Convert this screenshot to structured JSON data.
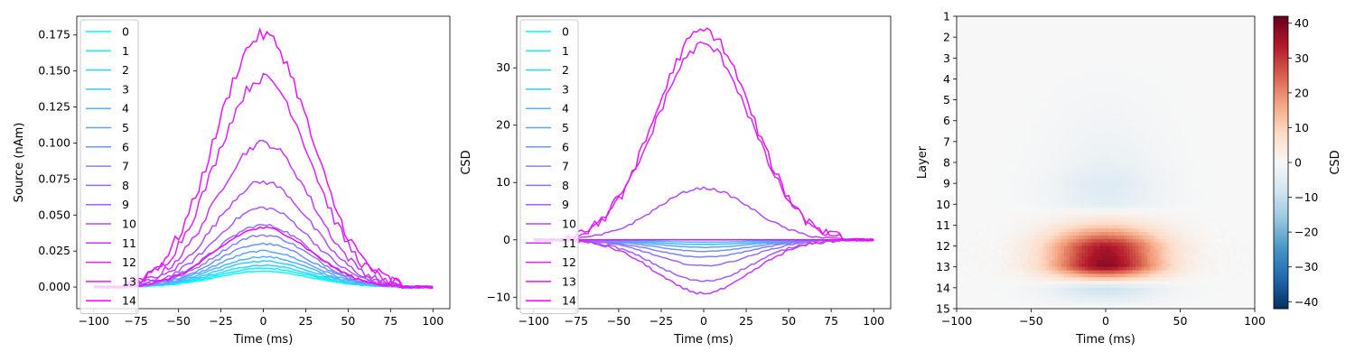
{
  "chart_data": [
    {
      "type": "line",
      "xlabel": "Time (ms)",
      "ylabel": "Source (nAm)",
      "xlim": [
        -110,
        110
      ],
      "ylim": [
        -0.015,
        0.188
      ],
      "x_ticks": [
        -100,
        -75,
        -50,
        -25,
        0,
        25,
        50,
        75,
        100
      ],
      "y_ticks": [
        0.0,
        0.025,
        0.05,
        0.075,
        0.1,
        0.125,
        0.15,
        0.175
      ],
      "y_tick_labels": [
        "0.000",
        "0.025",
        "0.050",
        "0.075",
        "0.100",
        "0.125",
        "0.150",
        "0.175"
      ],
      "legend_position": "upper left",
      "series_shape": "gaussian_pulse",
      "pulse": {
        "center_ms": 0,
        "sigma_ms": 28,
        "noisy": true,
        "onset_ms": -75,
        "offset_ms": 75
      },
      "series": [
        {
          "name": "0",
          "peak": 0.011
        },
        {
          "name": "1",
          "peak": 0.013
        },
        {
          "name": "2",
          "peak": 0.015
        },
        {
          "name": "3",
          "peak": 0.018
        },
        {
          "name": "4",
          "peak": 0.021
        },
        {
          "name": "5",
          "peak": 0.025
        },
        {
          "name": "6",
          "peak": 0.03
        },
        {
          "name": "7",
          "peak": 0.036
        },
        {
          "name": "8",
          "peak": 0.043
        },
        {
          "name": "9",
          "peak": 0.055
        },
        {
          "name": "10",
          "peak": 0.073
        },
        {
          "name": "11",
          "peak": 0.1
        },
        {
          "name": "12",
          "peak": 0.145
        },
        {
          "name": "13",
          "peak": 0.175
        },
        {
          "name": "14",
          "peak": 0.041
        }
      ]
    },
    {
      "type": "line",
      "xlabel": "Time (ms)",
      "ylabel": "CSD",
      "xlim": [
        -110,
        110
      ],
      "ylim": [
        -12,
        39
      ],
      "x_ticks": [
        -100,
        -75,
        -50,
        -25,
        0,
        25,
        50,
        75,
        100
      ],
      "y_ticks": [
        -10,
        0,
        10,
        20,
        30
      ],
      "legend_position": "upper left",
      "series_shape": "gaussian_pulse",
      "pulse": {
        "center_ms": 0,
        "sigma_ms": 28,
        "noisy": true,
        "onset_ms": -75,
        "offset_ms": 75
      },
      "series": [
        {
          "name": "0",
          "peak": 0.0
        },
        {
          "name": "1",
          "peak": 0.0
        },
        {
          "name": "2",
          "peak": 0.0
        },
        {
          "name": "3",
          "peak": -0.4
        },
        {
          "name": "4",
          "peak": -0.8
        },
        {
          "name": "5",
          "peak": -1.3
        },
        {
          "name": "6",
          "peak": -2.0
        },
        {
          "name": "7",
          "peak": -3.0
        },
        {
          "name": "8",
          "peak": -4.5
        },
        {
          "name": "9",
          "peak": -7.2
        },
        {
          "name": "10",
          "peak": 9.0
        },
        {
          "name": "11",
          "peak": -9.3
        },
        {
          "name": "12",
          "peak": 34.0
        },
        {
          "name": "13",
          "peak": 36.5
        },
        {
          "name": "14",
          "peak": 0.0
        }
      ]
    },
    {
      "type": "heatmap",
      "xlabel": "Time (ms)",
      "ylabel": "Layer",
      "xlim": [
        -100,
        100
      ],
      "x_ticks": [
        -100,
        -50,
        0,
        50,
        100
      ],
      "y_categories": [
        "1",
        "2",
        "3",
        "4",
        "5",
        "6",
        "7",
        "8",
        "9",
        "10",
        "11",
        "12",
        "13",
        "14",
        "15"
      ],
      "colormap": "RdBu_r",
      "colorbar_label": "CSD",
      "colorbar_range": [
        -42,
        42
      ],
      "colorbar_ticks": [
        -40,
        -30,
        -20,
        -10,
        0,
        10,
        20,
        30,
        40
      ],
      "layer_peaks": [
        0.0,
        0.0,
        0.0,
        -0.4,
        -0.8,
        -1.3,
        -2.0,
        -3.0,
        -5.5,
        -4.5,
        9.0,
        34.0,
        38.0,
        -9.3,
        0.0
      ],
      "pulse": {
        "center_ms": 0,
        "sigma_ms": 26
      }
    }
  ],
  "colors": {
    "series_start": "#00ffff",
    "series_end": "#ff00ff"
  }
}
